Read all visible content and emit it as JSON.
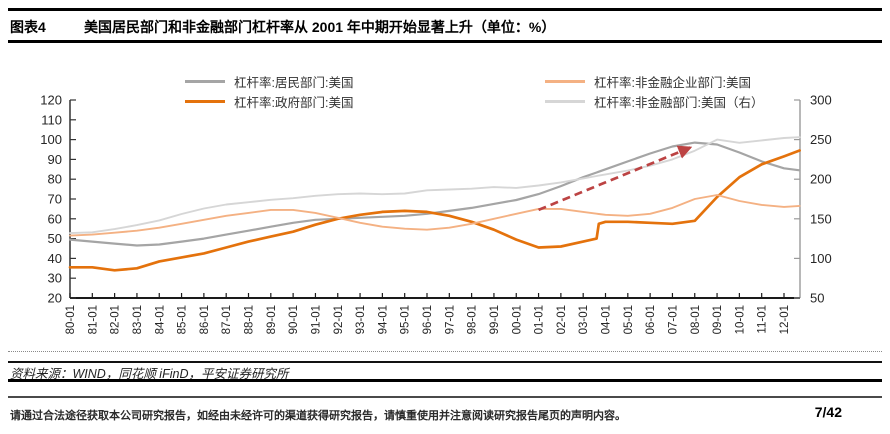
{
  "header": {
    "tag": "图表4",
    "title": "美国居民部门和非金融部门杠杆率从 2001 年中期开始显著上升（单位：%）"
  },
  "chart_data": {
    "type": "line",
    "grid": false,
    "legend_position": "top",
    "x": [
      1980,
      1981,
      1982,
      1983,
      1984,
      1985,
      1986,
      1987,
      1988,
      1989,
      1990,
      1991,
      1992,
      1993,
      1994,
      1995,
      1996,
      1997,
      1998,
      1999,
      2000,
      2001,
      2002,
      2003,
      2003.6,
      2003.7,
      2004,
      2005,
      2006,
      2007,
      2008,
      2009,
      2010,
      2011,
      2012,
      2012.7
    ],
    "x_tick_labels": [
      "80-01",
      "81-01",
      "82-01",
      "83-01",
      "84-01",
      "85-01",
      "86-01",
      "87-01",
      "88-01",
      "89-01",
      "90-01",
      "91-01",
      "92-01",
      "93-01",
      "94-01",
      "95-01",
      "96-01",
      "97-01",
      "98-01",
      "99-01",
      "00-01",
      "01-01",
      "02-01",
      "03-01",
      "04-01",
      "05-01",
      "06-01",
      "07-01",
      "08-01",
      "09-01",
      "10-01",
      "11-01",
      "12-01"
    ],
    "left_axis": {
      "range": [
        20,
        120
      ],
      "ticks": [
        120,
        110,
        100,
        90,
        80,
        70,
        60,
        50,
        40,
        30,
        20
      ]
    },
    "right_axis": {
      "range": [
        50,
        300
      ],
      "ticks": [
        300,
        250,
        200,
        150,
        100,
        50
      ]
    },
    "series": [
      {
        "name": "杠杆率:居民部门:美国",
        "axis": "left",
        "color": "#a5a5a5",
        "width": 2.2,
        "values": [
          49.5,
          48.5,
          47.5,
          46.5,
          47,
          48.5,
          50,
          52,
          54,
          56,
          58,
          59.5,
          60,
          60.5,
          61,
          61.5,
          62.5,
          64,
          65.5,
          67.5,
          69.5,
          72.5,
          76.5,
          81,
          83.4,
          83.8,
          85,
          89,
          93,
          96.5,
          98.5,
          97.5,
          93.5,
          89,
          85.5,
          84.5
        ]
      },
      {
        "name": "杠杆率:政府部门:美国",
        "axis": "left",
        "color": "#e4720c",
        "width": 2.7,
        "values": [
          35.5,
          35.5,
          34,
          35,
          38.5,
          40.5,
          42.5,
          45.5,
          48.5,
          51,
          53.5,
          57,
          60,
          62,
          63.5,
          64,
          63.5,
          61.5,
          58.5,
          54.5,
          49.5,
          45.5,
          46,
          48.5,
          50,
          57.5,
          58.5,
          58.5,
          58,
          57.5,
          59,
          71,
          81,
          87.5,
          91.5,
          94.5
        ]
      },
      {
        "name": "杠杆率:非金融企业部门:美国",
        "axis": "left",
        "color": "#f4b183",
        "width": 1.9,
        "values": [
          51.5,
          52,
          53,
          54,
          55.5,
          57.5,
          59.5,
          61.5,
          63,
          64.5,
          64.5,
          63,
          60.5,
          58,
          56,
          55,
          54.5,
          55.5,
          57.5,
          60,
          62.5,
          65,
          65,
          63.5,
          62.6,
          62.4,
          62,
          61.5,
          62.5,
          65.5,
          70,
          72,
          69,
          67,
          66,
          66.5
        ]
      },
      {
        "name": "杠杆率:非金融部门:美国（右）",
        "axis": "right",
        "color": "#d6d6d6",
        "width": 1.9,
        "values": [
          132,
          133,
          137,
          142,
          148,
          156,
          163,
          168,
          171,
          174,
          176,
          179,
          181,
          182,
          181,
          182,
          186,
          187,
          188,
          190,
          189,
          192,
          196,
          201,
          204,
          204.5,
          206,
          211,
          217,
          225,
          236,
          250,
          246,
          249,
          252,
          253
        ]
      }
    ],
    "annotation_arrow": {
      "from": {
        "x": 2001.0,
        "y": 64.5
      },
      "to": {
        "x": 2007.8,
        "y": 96
      },
      "color": "#bc4343"
    }
  },
  "footer": {
    "source": "资料来源：WIND，同花顺 iFinD，平安证券研究所"
  },
  "disclaimer": {
    "text": "请通过合法途径获取本公司研究报告，如经由未经许可的渠道获得研究报告，请慎重使用并注意阅读研究报告尾页的声明内容。",
    "page": "7/42"
  }
}
